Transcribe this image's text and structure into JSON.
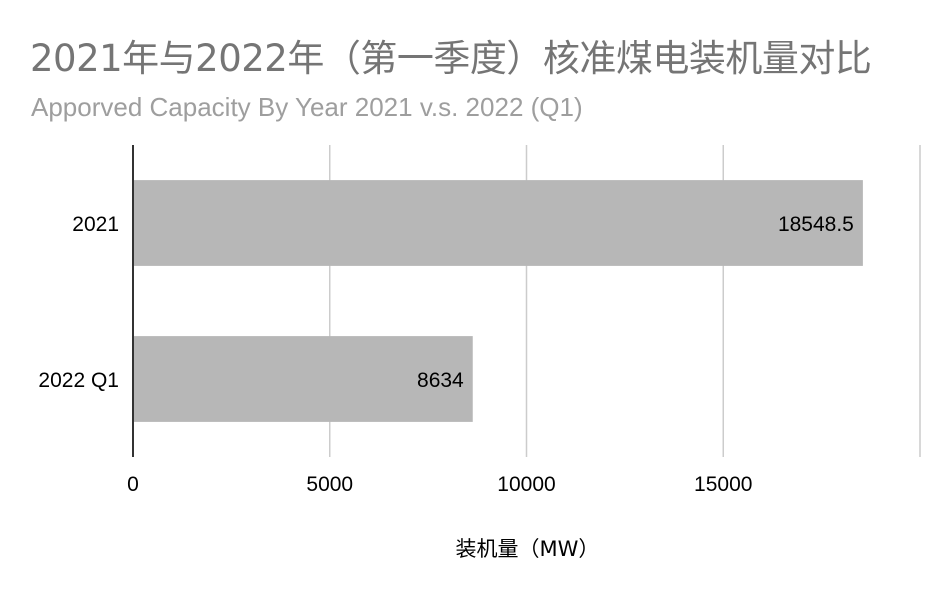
{
  "chart_data": {
    "type": "bar",
    "orientation": "horizontal",
    "title": "2021年与2022年（第一季度）核准煤电装机量对比",
    "subtitle": "Apporved Capacity By Year 2021 v.s. 2022 (Q1)",
    "xlabel": "装机量（MW）",
    "ylabel": "",
    "categories": [
      "2021",
      "2022 Q1"
    ],
    "values": [
      18548.5,
      8634
    ],
    "data_labels": [
      "18548.5",
      "8634"
    ],
    "x_ticks": [
      "0",
      "5000",
      "10000",
      "15000"
    ],
    "xlim": [
      0,
      20000
    ],
    "grid": true,
    "legend": "none",
    "bar_color": "#b7b7b7",
    "grid_color": "#cccccc",
    "axis_color": "#333333"
  }
}
